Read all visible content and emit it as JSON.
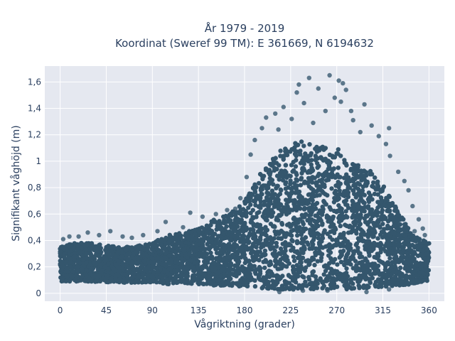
{
  "chart_data": {
    "type": "scatter",
    "title_line1": "År 1979 - 2019",
    "title_line2": "Koordinat (Sweref 99 TM): E 361669, N 6194632",
    "xlabel": "Vågriktning (grader)",
    "ylabel": "Signifikant våghöjd (m)",
    "xlim": [
      -15,
      375
    ],
    "ylim": [
      -0.06,
      1.72
    ],
    "xticks": [
      0,
      45,
      90,
      135,
      180,
      225,
      270,
      315,
      360
    ],
    "xtick_labels": [
      "0",
      "45",
      "90",
      "135",
      "180",
      "225",
      "270",
      "315",
      "360"
    ],
    "yticks": [
      0,
      0.2,
      0.4,
      0.6,
      0.8,
      1.0,
      1.2,
      1.4,
      1.6
    ],
    "ytick_labels": [
      "0",
      "0,2",
      "0,4",
      "0,6",
      "0,8",
      "1",
      "1,2",
      "1,4",
      "1,6"
    ],
    "grid": true,
    "marker_color": "#34566d",
    "plot_bg": "#e5e8f0",
    "envelope": {
      "x": [
        0,
        15,
        30,
        45,
        60,
        75,
        90,
        105,
        120,
        135,
        150,
        165,
        180,
        195,
        210,
        225,
        240,
        255,
        270,
        285,
        300,
        315,
        330,
        345,
        360
      ],
      "lower": [
        0.09,
        0.09,
        0.09,
        0.08,
        0.08,
        0.08,
        0.08,
        0.07,
        0.07,
        0.07,
        0.06,
        0.06,
        0.05,
        0.04,
        0.03,
        0.03,
        0.03,
        0.03,
        0.03,
        0.03,
        0.04,
        0.05,
        0.06,
        0.07,
        0.09
      ],
      "upper": [
        0.36,
        0.38,
        0.38,
        0.36,
        0.35,
        0.36,
        0.38,
        0.44,
        0.46,
        0.5,
        0.56,
        0.6,
        0.7,
        0.9,
        1.05,
        1.15,
        1.15,
        1.12,
        1.1,
        1.0,
        0.95,
        0.82,
        0.62,
        0.44,
        0.38
      ]
    },
    "outliers": [
      {
        "x": 243,
        "y": 1.63
      },
      {
        "x": 263,
        "y": 1.65
      },
      {
        "x": 272,
        "y": 1.61
      },
      {
        "x": 233,
        "y": 1.58
      },
      {
        "x": 276,
        "y": 1.59
      },
      {
        "x": 279,
        "y": 1.54
      },
      {
        "x": 231,
        "y": 1.52
      },
      {
        "x": 252,
        "y": 1.55
      },
      {
        "x": 268,
        "y": 1.48
      },
      {
        "x": 274,
        "y": 1.45
      },
      {
        "x": 297,
        "y": 1.43
      },
      {
        "x": 218,
        "y": 1.41
      },
      {
        "x": 238,
        "y": 1.44
      },
      {
        "x": 210,
        "y": 1.36
      },
      {
        "x": 259,
        "y": 1.38
      },
      {
        "x": 284,
        "y": 1.38
      },
      {
        "x": 201,
        "y": 1.33
      },
      {
        "x": 226,
        "y": 1.32
      },
      {
        "x": 286,
        "y": 1.31
      },
      {
        "x": 247,
        "y": 1.29
      },
      {
        "x": 304,
        "y": 1.27
      },
      {
        "x": 321,
        "y": 1.25
      },
      {
        "x": 293,
        "y": 1.22
      },
      {
        "x": 197,
        "y": 1.25
      },
      {
        "x": 213,
        "y": 1.24
      },
      {
        "x": 311,
        "y": 1.19
      },
      {
        "x": 190,
        "y": 1.16
      },
      {
        "x": 318,
        "y": 1.13
      },
      {
        "x": 322,
        "y": 1.04
      },
      {
        "x": 330,
        "y": 0.92
      },
      {
        "x": 336,
        "y": 0.85
      },
      {
        "x": 340,
        "y": 0.78
      },
      {
        "x": 344,
        "y": 0.66
      },
      {
        "x": 350,
        "y": 0.56
      },
      {
        "x": 186,
        "y": 1.05
      },
      {
        "x": 182,
        "y": 0.88
      },
      {
        "x": 176,
        "y": 0.72
      },
      {
        "x": 171,
        "y": 0.64
      },
      {
        "x": 163,
        "y": 0.63
      },
      {
        "x": 152,
        "y": 0.6
      },
      {
        "x": 139,
        "y": 0.58
      },
      {
        "x": 127,
        "y": 0.61
      },
      {
        "x": 120,
        "y": 0.5
      },
      {
        "x": 103,
        "y": 0.54
      },
      {
        "x": 95,
        "y": 0.47
      },
      {
        "x": 81,
        "y": 0.44
      },
      {
        "x": 70,
        "y": 0.42
      },
      {
        "x": 61,
        "y": 0.43
      },
      {
        "x": 49,
        "y": 0.47
      },
      {
        "x": 38,
        "y": 0.44
      },
      {
        "x": 27,
        "y": 0.46
      },
      {
        "x": 18,
        "y": 0.43
      },
      {
        "x": 9,
        "y": 0.43
      },
      {
        "x": 3,
        "y": 0.41
      },
      {
        "x": 356,
        "y": 0.44
      },
      {
        "x": 346,
        "y": 0.47
      },
      {
        "x": 354,
        "y": 0.49
      },
      {
        "x": 214,
        "y": 0.01
      },
      {
        "x": 237,
        "y": 0.02
      },
      {
        "x": 261,
        "y": 0.02
      },
      {
        "x": 299,
        "y": 0.01
      },
      {
        "x": 321,
        "y": 0.03
      }
    ]
  }
}
